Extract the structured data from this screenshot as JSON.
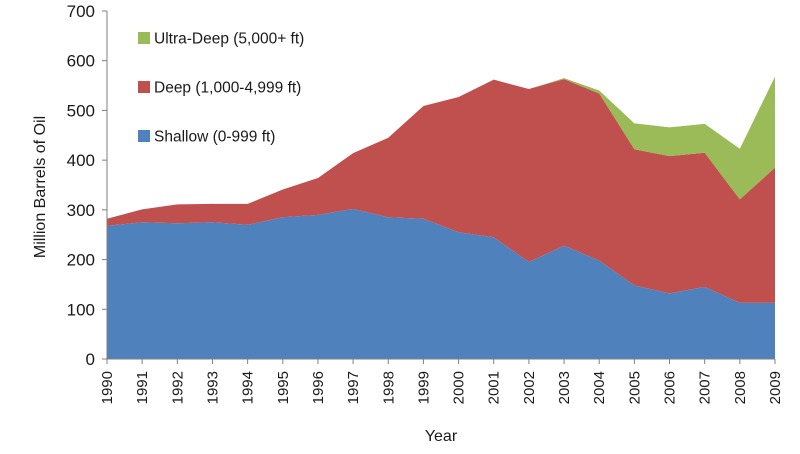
{
  "chart_data": {
    "type": "area",
    "stacked": true,
    "title": "",
    "xlabel": "Year",
    "ylabel": "Million Barrels of Oil",
    "ylim": [
      0,
      700
    ],
    "yticks": [
      0,
      100,
      200,
      300,
      400,
      500,
      600,
      700
    ],
    "grid": false,
    "legend_position": "top-left",
    "x": [
      "1990",
      "1991",
      "1992",
      "1993",
      "1994",
      "1995",
      "1996",
      "1997",
      "1998",
      "1999",
      "2000",
      "2001",
      "2002",
      "2003",
      "2004",
      "2005",
      "2006",
      "2007",
      "2008",
      "2009"
    ],
    "series": [
      {
        "name": "Shallow (0-999 ft)",
        "color": "#4f81bd",
        "values": [
          268,
          275,
          273,
          275,
          270,
          285,
          290,
          302,
          285,
          282,
          255,
          245,
          195,
          228,
          198,
          148,
          132,
          145,
          113,
          113
        ]
      },
      {
        "name": "Deep (1,000-4,999 ft)",
        "color": "#c0504d",
        "values": [
          14,
          26,
          38,
          37,
          42,
          56,
          74,
          112,
          160,
          227,
          272,
          317,
          348,
          335,
          336,
          274,
          276,
          270,
          208,
          272
        ]
      },
      {
        "name": "Ultra-Deep (5,000+ ft)",
        "color": "#9bbb59",
        "values": [
          0,
          0,
          0,
          0,
          0,
          0,
          0,
          0,
          0,
          0,
          0,
          0,
          0,
          2,
          6,
          52,
          58,
          58,
          102,
          183
        ]
      }
    ],
    "legend_order": [
      2,
      1,
      0
    ]
  }
}
